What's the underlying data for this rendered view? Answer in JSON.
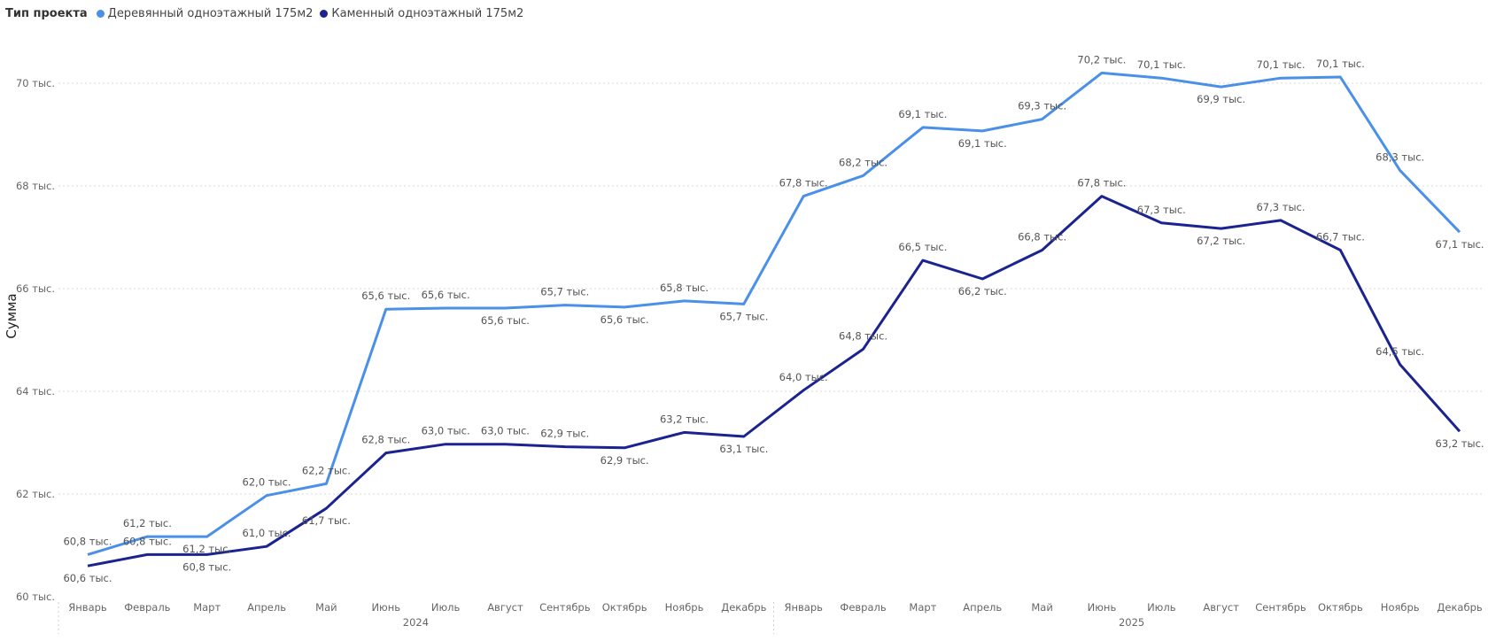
{
  "legend": {
    "title": "Тип проекта",
    "items": [
      {
        "label": "Деревянный одноэтажный 175м2",
        "color": "#4a90e8"
      },
      {
        "label": "Каменный одноэтажный 175м2",
        "color": "#1a2390"
      }
    ]
  },
  "chart_data": {
    "type": "line",
    "ylabel": "Сумма",
    "ylim": [
      60,
      70.6
    ],
    "yticks": [
      "60 тыс.",
      "62 тыс.",
      "64 тыс.",
      "66 тыс.",
      "68 тыс.",
      "70 тыс."
    ],
    "ytick_values": [
      60,
      62,
      64,
      66,
      68,
      70
    ],
    "grid": true,
    "legend_position": "top-left",
    "years": [
      "2024",
      "2025"
    ],
    "categories": [
      "Январь",
      "Февраль",
      "Март",
      "Апрель",
      "Май",
      "Июнь",
      "Июль",
      "Август",
      "Сентябрь",
      "Октябрь",
      "Ноябрь",
      "Декабрь",
      "Январь",
      "Февраль",
      "Март",
      "Апрель",
      "Май",
      "Июнь",
      "Июль",
      "Август",
      "Сентябрь",
      "Октябрь",
      "Ноябрь",
      "Декабрь"
    ],
    "series": [
      {
        "name": "Деревянный одноэтажный 175м2",
        "color": "#4a90e8",
        "values": [
          60.82,
          61.17,
          61.17,
          61.97,
          62.2,
          65.6,
          65.62,
          65.62,
          65.68,
          65.64,
          65.76,
          65.7,
          67.8,
          68.2,
          69.14,
          69.07,
          69.3,
          70.2,
          70.1,
          69.93,
          70.1,
          70.12,
          68.3,
          67.1
        ],
        "labels": [
          "60,8 тыс.",
          "61,2 тыс.",
          "61,2 тыс.",
          "62,0 тыс.",
          "62,2 тыс.",
          "65,6 тыс.",
          "65,6 тыс.",
          "65,6 тыс.",
          "65,7 тыс.",
          "65,6 тыс.",
          "65,8 тыс.",
          "65,7 тыс.",
          "67,8 тыс.",
          "68,2 тыс.",
          "69,1 тыс.",
          "69,1 тыс.",
          "69,3 тыс.",
          "70,2 тыс.",
          "70,1 тыс.",
          "69,9 тыс.",
          "70,1 тыс.",
          "70,1 тыс.",
          "68,3 тыс.",
          "67,1 тыс."
        ],
        "label_above": [
          true,
          true,
          false,
          true,
          true,
          true,
          true,
          false,
          true,
          false,
          true,
          false,
          true,
          true,
          true,
          false,
          true,
          true,
          true,
          false,
          true,
          true,
          true,
          false
        ]
      },
      {
        "name": "Каменный одноэтажный 175м2",
        "color": "#1a2390",
        "values": [
          60.6,
          60.82,
          60.82,
          60.98,
          61.72,
          62.8,
          62.97,
          62.97,
          62.92,
          62.9,
          63.2,
          63.12,
          64.02,
          64.82,
          66.55,
          66.19,
          66.75,
          67.8,
          67.28,
          67.17,
          67.33,
          66.75,
          64.52,
          63.22
        ],
        "labels": [
          "60,6 тыс.",
          "60,8 тыс.",
          "60,8 тыс.",
          "61,0 тыс.",
          "61,7 тыс.",
          "62,8 тыс.",
          "63,0 тыс.",
          "63,0 тыс.",
          "62,9 тыс.",
          "62,9 тыс.",
          "63,2 тыс.",
          "63,1 тыс.",
          "64,0 тыс.",
          "64,8 тыс.",
          "66,5 тыс.",
          "66,2 тыс.",
          "66,8 тыс.",
          "67,8 тыс.",
          "67,3 тыс.",
          "67,2 тыс.",
          "67,3 тыс.",
          "66,7 тыс.",
          "64,5 тыс.",
          "63,2 тыс."
        ],
        "label_above": [
          false,
          true,
          false,
          true,
          false,
          true,
          true,
          true,
          true,
          false,
          true,
          false,
          true,
          true,
          true,
          false,
          true,
          true,
          true,
          false,
          true,
          true,
          true,
          false
        ]
      }
    ]
  }
}
